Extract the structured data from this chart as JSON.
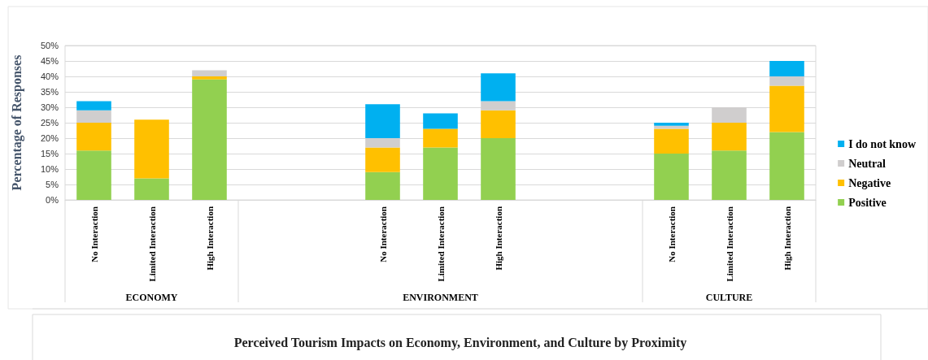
{
  "chart_data": {
    "type": "bar",
    "stacked": true,
    "title": "Perceived Tourism Impacts on Economy, Environment, and Culture by Proximity",
    "ylabel": "Percentage of Responses",
    "categories": [
      "No Interaction",
      "Limited Interaction",
      "High Interaction",
      null,
      null,
      "No Interaction",
      "Limited Interaction",
      "High Interaction",
      null,
      null,
      "No Interaction",
      "Limited Interaction",
      "High Interaction"
    ],
    "series": [
      {
        "name": "Positive",
        "color": "#92d050",
        "values": [
          16,
          7,
          39,
          null,
          null,
          9,
          17,
          20,
          null,
          null,
          15,
          16,
          22
        ]
      },
      {
        "name": "Negative",
        "color": "#ffc000",
        "values": [
          9,
          19,
          1,
          null,
          null,
          8,
          6,
          9,
          null,
          null,
          8,
          9,
          15
        ]
      },
      {
        "name": "Neutral",
        "color": "#d0cece",
        "values": [
          4,
          0,
          2,
          null,
          null,
          3,
          0,
          3,
          null,
          null,
          1,
          5,
          3
        ]
      },
      {
        "name": "I do not know",
        "color": "#00b0f0",
        "values": [
          3,
          0,
          0,
          null,
          null,
          11,
          5,
          9,
          null,
          null,
          1,
          0,
          5
        ]
      }
    ],
    "ylim": [
      0,
      50
    ],
    "yticks": [
      {
        "value": 0,
        "label": "0%"
      },
      {
        "value": 5,
        "label": "5%"
      },
      {
        "value": 10,
        "label": "10%"
      },
      {
        "value": 15,
        "label": "15%"
      },
      {
        "value": 20,
        "label": "20%"
      },
      {
        "value": 25,
        "label": "25%"
      },
      {
        "value": 30,
        "label": "30%"
      },
      {
        "value": 35,
        "label": "35%"
      },
      {
        "value": 40,
        "label": "40%"
      },
      {
        "value": 45,
        "label": "45%"
      },
      {
        "value": 50,
        "label": "50%"
      }
    ],
    "grid": "y",
    "legend": "right",
    "annotations": [
      "ECONOMY",
      "ENVIRONMENT",
      "CULTURE"
    ]
  }
}
